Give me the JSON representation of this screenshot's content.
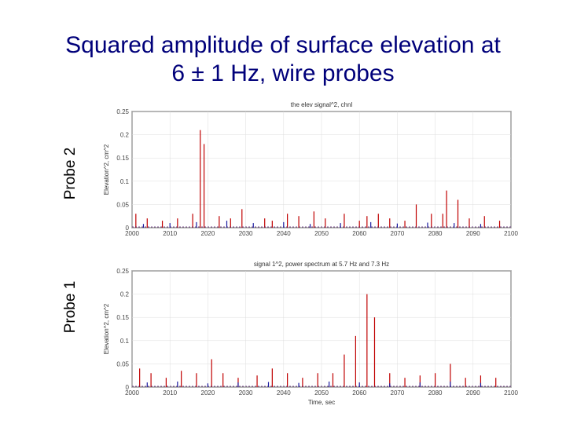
{
  "slide": {
    "title_line1": "Squared amplitude of surface elevation at",
    "title_line2": "6 ± 1 Hz, wire probes",
    "probe2_label": "Probe 2",
    "probe1_label": "Probe 1",
    "colors": {
      "title": "#00007a",
      "series_red": "#c00000",
      "series_blue": "#1a1aa0"
    }
  },
  "chart_data": [
    {
      "type": "line",
      "title": "the elev signal^2, chnl",
      "xlabel": "",
      "ylabel": "Elevation^2, cm^2",
      "xlim": [
        2000,
        2100
      ],
      "ylim": [
        0,
        0.25
      ],
      "xticks": [
        2000,
        2010,
        2020,
        2030,
        2040,
        2050,
        2060,
        2070,
        2080,
        2090,
        2100
      ],
      "xtick_labels": [
        "2000",
        "2010",
        "2020",
        "2030",
        "2040",
        "2050",
        "2060",
        "2070",
        "2080",
        "2090",
        "2100"
      ],
      "yticks": [
        0,
        0.05,
        0.1,
        0.15,
        0.2,
        0.25
      ],
      "ytick_labels": [
        "0",
        "0.05",
        "0.1",
        "0.15",
        "0.2",
        "0.25"
      ],
      "grid": true,
      "series": [
        {
          "color": "red",
          "x": [
            2001,
            2004,
            2008,
            2012,
            2016,
            2018,
            2019,
            2023,
            2026,
            2029,
            2035,
            2037,
            2041,
            2044,
            2048,
            2051,
            2056,
            2060,
            2062,
            2065,
            2068,
            2072,
            2075,
            2079,
            2082,
            2083,
            2086,
            2089,
            2093,
            2097
          ],
          "y": [
            0.03,
            0.02,
            0.015,
            0.02,
            0.03,
            0.21,
            0.18,
            0.025,
            0.02,
            0.04,
            0.02,
            0.015,
            0.03,
            0.025,
            0.035,
            0.02,
            0.03,
            0.015,
            0.025,
            0.03,
            0.02,
            0.015,
            0.05,
            0.03,
            0.03,
            0.08,
            0.06,
            0.02,
            0.025,
            0.015
          ]
        },
        {
          "color": "blue",
          "x": [
            2003,
            2010,
            2017,
            2025,
            2032,
            2040,
            2047,
            2055,
            2063,
            2070,
            2078,
            2085,
            2092
          ],
          "y": [
            0.008,
            0.01,
            0.012,
            0.015,
            0.01,
            0.012,
            0.008,
            0.01,
            0.012,
            0.009,
            0.011,
            0.01,
            0.008
          ]
        }
      ]
    },
    {
      "type": "line",
      "title": "signal 1^2, power spectrum at 5.7 Hz and 7.3 Hz",
      "xlabel": "Time, sec",
      "ylabel": "Elevation^2, cm^2",
      "xlim": [
        2000,
        2100
      ],
      "ylim": [
        0,
        0.25
      ],
      "xticks": [
        2000,
        2010,
        2020,
        2030,
        2040,
        2050,
        2060,
        2070,
        2080,
        2090,
        2100
      ],
      "xtick_labels": [
        "2000",
        "2010",
        "2020",
        "2030",
        "2040",
        "2050",
        "2060",
        "2070",
        "2080",
        "2090",
        "2100"
      ],
      "yticks": [
        0,
        0.05,
        0.1,
        0.15,
        0.2,
        0.25
      ],
      "ytick_labels": [
        "0",
        "0.05",
        "0.1",
        "0.15",
        "0.2",
        "0.25"
      ],
      "grid": true,
      "series": [
        {
          "color": "red",
          "x": [
            2002,
            2005,
            2009,
            2013,
            2017,
            2021,
            2024,
            2028,
            2033,
            2037,
            2041,
            2045,
            2049,
            2053,
            2056,
            2059,
            2062,
            2064,
            2068,
            2072,
            2076,
            2080,
            2084,
            2088,
            2092,
            2096
          ],
          "y": [
            0.04,
            0.03,
            0.02,
            0.035,
            0.03,
            0.06,
            0.03,
            0.02,
            0.025,
            0.04,
            0.03,
            0.02,
            0.03,
            0.03,
            0.07,
            0.11,
            0.2,
            0.15,
            0.03,
            0.02,
            0.025,
            0.03,
            0.05,
            0.02,
            0.025,
            0.02
          ]
        },
        {
          "color": "blue",
          "x": [
            2004,
            2012,
            2020,
            2028,
            2036,
            2044,
            2052,
            2060,
            2068,
            2076,
            2084,
            2092
          ],
          "y": [
            0.01,
            0.012,
            0.008,
            0.01,
            0.011,
            0.009,
            0.012,
            0.01,
            0.008,
            0.01,
            0.012,
            0.009
          ]
        }
      ]
    }
  ]
}
